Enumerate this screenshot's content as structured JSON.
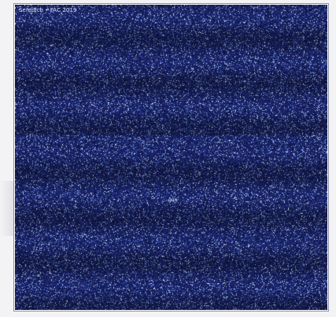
{
  "image": {
    "caption": "Sempich • FAC 2019",
    "center_label": "gun",
    "colors": {
      "background": "#1b2469",
      "speckle_dark": "#0c1340",
      "speckle_light": "#8fb6ff",
      "speckle_highlight": "#e6f6ff"
    }
  }
}
